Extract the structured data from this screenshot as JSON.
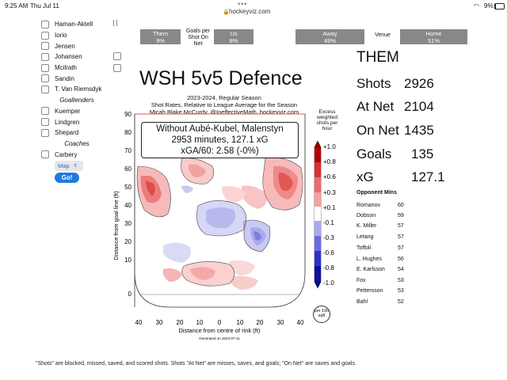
{
  "status": {
    "time": "9:25 AM",
    "date": "Thu Jul 11",
    "url": "hockeyviz.com",
    "battery": "9%"
  },
  "players": [
    {
      "name": "Haman-Aktell"
    },
    {
      "name": "Iorio"
    },
    {
      "name": "Jensen"
    },
    {
      "name": "Johansen"
    },
    {
      "name": "Mcilrath"
    },
    {
      "name": "Sandin"
    },
    {
      "name": "T. Van Riemsdyk"
    }
  ],
  "goaltenders_header": "Goaltenders",
  "goalies": [
    {
      "name": "Kuemper"
    },
    {
      "name": "Lindgren"
    },
    {
      "name": "Shepard"
    }
  ],
  "coaches_header": "Coaches",
  "coaches": [
    {
      "name": "Carbery"
    }
  ],
  "map_select": "Map",
  "go_label": "Go!",
  "tabs": {
    "them": {
      "label": "Them",
      "pct": "9%"
    },
    "goals_per_shot": "Goals per Shot On Net",
    "us": {
      "label": "Us",
      "pct": "8%"
    },
    "away": {
      "label": "Away",
      "pct": "49%"
    },
    "venue": "Venue",
    "home": {
      "label": "Home",
      "pct": "51%"
    }
  },
  "chart": {
    "title": "WSH 5v5 Defence",
    "subtitle1": "2023-2024, Regular Season",
    "subtitle2": "Shot Rates, Relative to League Average for the Season",
    "subtitle3": "Micah Blake McCurdy, @IneffectiveMath, hockeyviz.com",
    "ann1": "Without Aubé-Kubel, Malenstyn",
    "ann2": "2953 minutes, 127.1 xG",
    "ann3": "xGA/60: 2.58 (-0%)",
    "ylabel": "Distance from goal line (ft)",
    "xlabel": "Distance from centre of rink (ft)",
    "generated": "Generated on 2024-07-11",
    "yticks": [
      "90",
      "80",
      "70",
      "60",
      "50",
      "40",
      "30",
      "20",
      "10",
      "0"
    ],
    "xticks": [
      "40",
      "30",
      "20",
      "10",
      "0",
      "10",
      "20",
      "30",
      "40"
    ],
    "cbar_label": "Excess weighted shots per hour",
    "cbar_ticks": [
      "+1.0",
      "+0.8",
      "+0.6",
      "+0.3",
      "+0.1",
      "-0.1",
      "-0.3",
      "-0.6",
      "-0.8",
      "-1.0"
    ],
    "per100": "per 100 sqft",
    "colors": {
      "red": "#d62828",
      "blue": "#2222cc"
    }
  },
  "stats": {
    "title": "THEM",
    "rows": [
      {
        "label": "Shots",
        "value": "2926"
      },
      {
        "label": "At Net",
        "value": "2104"
      },
      {
        "label": "On Net",
        "value": "1435"
      },
      {
        "label": "Goals",
        "value": "135"
      },
      {
        "label": "xG",
        "value": "127.1"
      }
    ]
  },
  "roster": {
    "col1": "Opponent",
    "col2": "Mins",
    "rows": [
      {
        "name": "Romanov",
        "mins": "60"
      },
      {
        "name": "Dobson",
        "mins": "59"
      },
      {
        "name": "K. Miller",
        "mins": "57"
      },
      {
        "name": "Letang",
        "mins": "57"
      },
      {
        "name": "Toffoli",
        "mins": "57"
      },
      {
        "name": "L. Hughes",
        "mins": "56"
      },
      {
        "name": "E. Karlsson",
        "mins": "54"
      },
      {
        "name": "Fox",
        "mins": "53"
      },
      {
        "name": "Pettersson",
        "mins": "53"
      },
      {
        "name": "Bahl",
        "mins": "52"
      }
    ]
  },
  "footnote": "\"Shots\" are blocked, missed, saved, and scored shots. Shots \"At Net\" are misses, saves, and goals; \"On Net\" are saves and goals."
}
